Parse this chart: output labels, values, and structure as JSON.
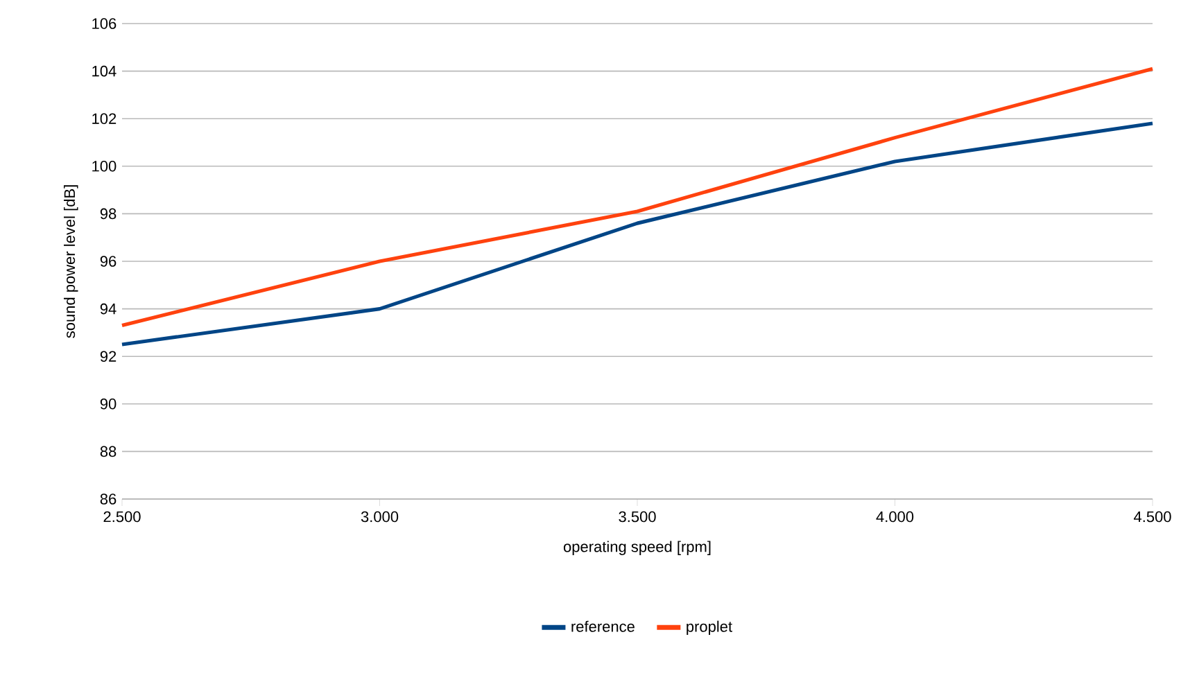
{
  "chart_data": {
    "type": "line",
    "xlabel": "operating speed [rpm]",
    "ylabel": "sound power level [dB]",
    "x": [
      2500,
      3000,
      3500,
      4000,
      4500
    ],
    "series": [
      {
        "name": "reference",
        "color": "#004586",
        "values": [
          92.5,
          94.0,
          97.6,
          100.2,
          101.8
        ]
      },
      {
        "name": "proplet",
        "color": "#ff420e",
        "values": [
          93.3,
          96.0,
          98.1,
          101.2,
          104.1
        ]
      }
    ],
    "xlim": [
      2500,
      4500
    ],
    "xticks": [
      {
        "value": 2500,
        "label": "2.500"
      },
      {
        "value": 3000,
        "label": "3.000"
      },
      {
        "value": 3500,
        "label": "3.500"
      },
      {
        "value": 4000,
        "label": "4.000"
      },
      {
        "value": 4500,
        "label": "4.500"
      }
    ],
    "ylim": [
      86,
      106
    ],
    "yticks": [
      86,
      88,
      90,
      92,
      94,
      96,
      98,
      100,
      102,
      104,
      106
    ],
    "grid": "y",
    "legend": "bottom",
    "marker": "none",
    "line_style": "solid"
  }
}
